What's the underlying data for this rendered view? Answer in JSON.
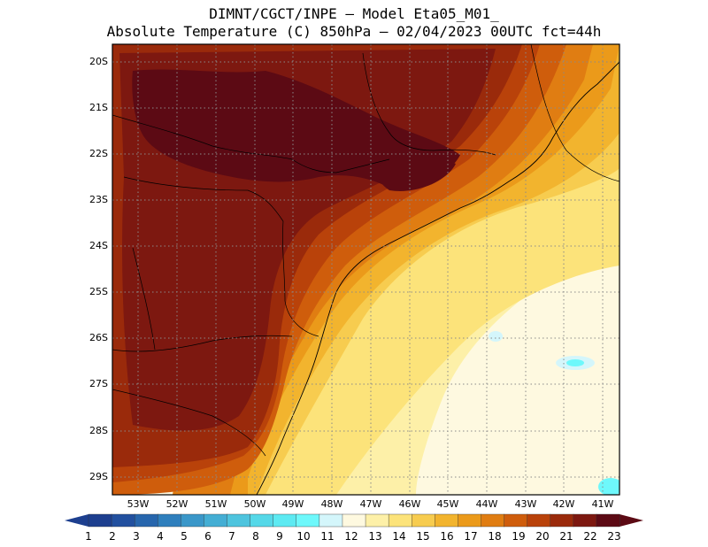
{
  "header": {
    "line1": "DIMNT/CGCT/INPE –  Model Eta05_M01_",
    "line2": "Absolute Temperature (C) 850hPa –  02/04/2023 00UTC fct=44h"
  },
  "axes": {
    "latitude_labels": [
      "20S",
      "21S",
      "22S",
      "23S",
      "24S",
      "25S",
      "26S",
      "27S",
      "28S",
      "29S"
    ],
    "longitude_labels": [
      "53W",
      "52W",
      "51W",
      "50W",
      "49W",
      "48W",
      "47W",
      "46W",
      "45W",
      "44W",
      "43W",
      "42W",
      "41W"
    ]
  },
  "colorbar": {
    "labels": [
      "1",
      "2",
      "3",
      "4",
      "5",
      "6",
      "7",
      "8",
      "9",
      "10",
      "11",
      "12",
      "13",
      "14",
      "15",
      "16",
      "17",
      "18",
      "19",
      "20",
      "21",
      "22",
      "23"
    ],
    "colors": [
      "#1d3f8f",
      "#22509f",
      "#2766ad",
      "#2f7fbd",
      "#3a97c9",
      "#44aed4",
      "#4ec4de",
      "#55d8e8",
      "#5deaf2",
      "#6ef8fb",
      "#d4f6fb",
      "#fef9e0",
      "#fdf0a8",
      "#fce37a",
      "#f7cc4f",
      "#f2b42e",
      "#eb9a1a",
      "#e07d12",
      "#cf5d0c",
      "#b9420a",
      "#9a2a0b",
      "#7d1810",
      "#5c0a14"
    ],
    "low_arrow_color": "#1d3f8f",
    "high_arrow_color": "#5c0a14"
  }
}
